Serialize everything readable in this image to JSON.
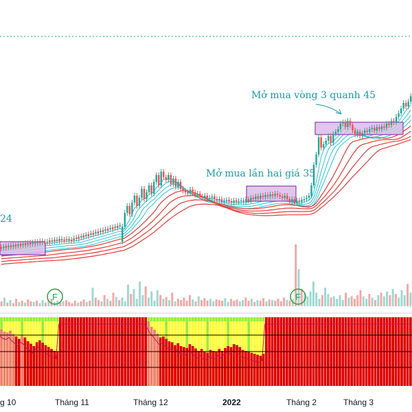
{
  "chart_data": {
    "type": "candlestick",
    "annotations": {
      "a1": "Mở mua  vòng 3 quanh 45",
      "a2": "Mở mua lần hai giá 35",
      "a3": "24"
    },
    "markers": [
      "F",
      "F"
    ],
    "x_tick_labels": [
      "g 10",
      "Tháng 11",
      "Tháng 12",
      "2022",
      "Tháng 2",
      "Tháng 3"
    ],
    "candles": [
      [
        360,
        362
      ],
      [
        361,
        359
      ],
      [
        358,
        361
      ],
      [
        360,
        358
      ],
      [
        357,
        360
      ],
      [
        359,
        357
      ],
      [
        356,
        359
      ],
      [
        358,
        356
      ],
      [
        355,
        358
      ],
      [
        357,
        355
      ],
      [
        354,
        357
      ],
      [
        356,
        354
      ],
      [
        353,
        356
      ],
      [
        355,
        353
      ],
      [
        352,
        355
      ],
      [
        354,
        352
      ],
      [
        351,
        354
      ],
      [
        353,
        351
      ],
      [
        352,
        354
      ],
      [
        353,
        352
      ],
      [
        350,
        353
      ],
      [
        352,
        350
      ],
      [
        349,
        352
      ],
      [
        351,
        349
      ],
      [
        348,
        351
      ],
      [
        350,
        348
      ],
      [
        349,
        350
      ],
      [
        348,
        349
      ],
      [
        350,
        348
      ],
      [
        349,
        351
      ],
      [
        347,
        350
      ],
      [
        348,
        346
      ],
      [
        345,
        348
      ],
      [
        346,
        344
      ],
      [
        343,
        346
      ],
      [
        344,
        342
      ],
      [
        341,
        344
      ],
      [
        342,
        340
      ],
      [
        339,
        342
      ],
      [
        340,
        338
      ],
      [
        337,
        340
      ],
      [
        338,
        336
      ],
      [
        335,
        338
      ],
      [
        336,
        334
      ],
      [
        333,
        336
      ],
      [
        334,
        332
      ],
      [
        331,
        334
      ],
      [
        332,
        330
      ],
      [
        329,
        332
      ],
      [
        330,
        328
      ],
      [
        352,
        330
      ],
      [
        330,
        310
      ],
      [
        310,
        300
      ],
      [
        300,
        312
      ],
      [
        312,
        295
      ],
      [
        295,
        285
      ],
      [
        285,
        300
      ],
      [
        300,
        288
      ],
      [
        288,
        275
      ],
      [
        275,
        290
      ],
      [
        290,
        280
      ],
      [
        280,
        270
      ],
      [
        270,
        282
      ],
      [
        282,
        265
      ],
      [
        265,
        255
      ],
      [
        255,
        270
      ],
      [
        270,
        250
      ],
      [
        250,
        258
      ],
      [
        258,
        262
      ],
      [
        262,
        255
      ],
      [
        255,
        268
      ],
      [
        268,
        260
      ],
      [
        260,
        272
      ],
      [
        272,
        265
      ],
      [
        265,
        275
      ],
      [
        275,
        278
      ],
      [
        278,
        280
      ],
      [
        280,
        282
      ],
      [
        282,
        276
      ],
      [
        276,
        280
      ],
      [
        280,
        284
      ],
      [
        284,
        282
      ],
      [
        282,
        286
      ],
      [
        286,
        288
      ],
      [
        288,
        285
      ],
      [
        285,
        290
      ],
      [
        290,
        288
      ],
      [
        288,
        286
      ],
      [
        286,
        290
      ],
      [
        290,
        292
      ],
      [
        292,
        290
      ],
      [
        290,
        294
      ],
      [
        294,
        292
      ],
      [
        292,
        291
      ],
      [
        291,
        293
      ],
      [
        293,
        295
      ],
      [
        295,
        292
      ],
      [
        292,
        294
      ],
      [
        294,
        293
      ],
      [
        293,
        292
      ],
      [
        292,
        294
      ],
      [
        294,
        290
      ],
      [
        290,
        292
      ],
      [
        292,
        288
      ],
      [
        288,
        290
      ],
      [
        290,
        286
      ],
      [
        286,
        289
      ],
      [
        289,
        285
      ],
      [
        285,
        287
      ],
      [
        287,
        284
      ],
      [
        284,
        286
      ],
      [
        286,
        283
      ],
      [
        283,
        285
      ],
      [
        285,
        282
      ],
      [
        282,
        284
      ],
      [
        284,
        286
      ],
      [
        286,
        288
      ],
      [
        288,
        285
      ],
      [
        285,
        290
      ],
      [
        290,
        294
      ],
      [
        294,
        290
      ],
      [
        290,
        296
      ],
      [
        296,
        292
      ],
      [
        292,
        294
      ],
      [
        294,
        291
      ],
      [
        291,
        290
      ],
      [
        290,
        288
      ],
      [
        288,
        285
      ],
      [
        285,
        270
      ],
      [
        270,
        240
      ],
      [
        240,
        225
      ],
      [
        225,
        200
      ],
      [
        200,
        215
      ],
      [
        215,
        210
      ],
      [
        210,
        205
      ],
      [
        205,
        198
      ],
      [
        198,
        208
      ],
      [
        208,
        195
      ],
      [
        195,
        192
      ],
      [
        192,
        188
      ],
      [
        188,
        180
      ],
      [
        180,
        178
      ],
      [
        178,
        185
      ],
      [
        185,
        176
      ],
      [
        176,
        182
      ],
      [
        182,
        190
      ],
      [
        190,
        196
      ],
      [
        196,
        192
      ],
      [
        192,
        198
      ],
      [
        198,
        194
      ],
      [
        194,
        190
      ],
      [
        190,
        192
      ],
      [
        192,
        188
      ],
      [
        188,
        186
      ],
      [
        186,
        190
      ],
      [
        190,
        185
      ],
      [
        185,
        188
      ],
      [
        188,
        184
      ],
      [
        184,
        186
      ],
      [
        186,
        180
      ],
      [
        180,
        182
      ],
      [
        182,
        176
      ],
      [
        176,
        178
      ],
      [
        178,
        170
      ],
      [
        170,
        165
      ],
      [
        165,
        158
      ],
      [
        158,
        150
      ],
      [
        150,
        155
      ],
      [
        155,
        148
      ],
      [
        148,
        140
      ]
    ],
    "volumes": [
      8,
      14,
      6,
      10,
      5,
      12,
      7,
      9,
      6,
      11,
      8,
      7,
      9,
      5,
      10,
      6,
      8,
      12,
      7,
      9,
      6,
      8,
      10,
      7,
      5,
      9,
      6,
      8,
      11,
      7,
      9,
      30,
      14,
      10,
      8,
      18,
      12,
      9,
      22,
      15,
      10,
      14,
      8,
      35,
      20,
      28,
      12,
      40,
      18,
      32,
      14,
      24,
      9,
      26,
      18,
      12,
      15,
      10,
      22,
      8,
      12,
      10,
      14,
      9,
      18,
      11,
      8,
      16,
      10,
      13,
      9,
      12,
      8,
      11,
      10,
      9,
      13,
      7,
      12,
      9,
      11,
      8,
      10,
      14,
      9,
      12,
      7,
      10,
      9,
      13,
      8,
      11,
      10,
      9,
      12,
      8,
      14,
      10,
      9,
      11,
      100,
      60,
      28,
      20,
      16,
      24,
      40,
      22,
      12,
      18,
      30,
      20,
      14,
      16,
      12,
      18,
      10,
      22,
      14,
      16,
      12,
      18,
      26,
      16,
      12,
      20,
      14,
      10,
      18,
      22,
      16,
      24,
      18,
      28,
      20,
      14,
      26,
      18,
      36,
      22
    ],
    "osc_values": [
      75,
      70,
      68,
      72,
      65,
      60,
      55,
      62,
      58,
      50,
      45,
      40,
      48,
      52,
      47,
      42,
      38,
      34,
      30,
      28,
      100,
      100,
      100,
      100,
      100,
      100,
      100,
      100,
      100,
      100,
      100,
      100,
      100,
      100,
      100,
      100,
      100,
      100,
      100,
      100,
      100,
      100,
      100,
      100,
      100,
      100,
      100,
      100,
      100,
      100,
      92,
      80,
      74,
      66,
      58,
      60,
      55,
      50,
      48,
      42,
      46,
      40,
      38,
      36,
      44,
      40,
      35,
      30,
      34,
      28,
      26,
      32,
      30,
      28,
      34,
      30,
      36,
      40,
      38,
      44,
      42,
      38,
      32,
      30,
      28,
      26,
      24,
      22,
      20,
      24,
      100,
      100,
      100,
      100,
      100,
      100,
      100,
      100,
      100,
      100,
      100,
      100,
      100,
      100,
      100,
      100,
      100,
      100,
      100,
      100,
      100,
      100,
      100,
      100,
      100,
      100,
      100,
      100,
      100,
      100,
      100,
      100,
      100,
      100,
      100,
      100,
      100,
      100,
      100,
      100,
      100,
      100,
      100,
      100,
      100,
      100,
      100,
      100,
      100,
      100
    ],
    "colors": {
      "up": "#26a69a",
      "down": "#ef5350",
      "ribbon_fast": "#26c6da",
      "ribbon_slow": "#e53935",
      "box_fill": "#d9b8e6",
      "box_stroke": "#7b1fa2",
      "osc_red": "#e00000",
      "osc_yellow": "#ffff33",
      "osc_green": "#99ee33",
      "annotation": "#1a9ba8",
      "dotted_line": "#26a69a"
    }
  }
}
